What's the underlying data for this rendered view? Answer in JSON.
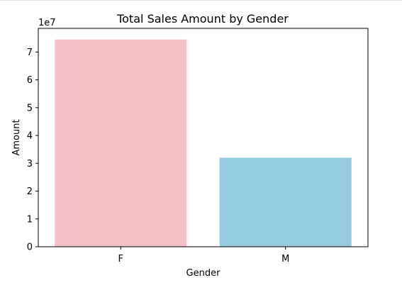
{
  "chart_data": {
    "type": "bar",
    "title": "Total Sales Amount by Gender",
    "xlabel": "Gender",
    "ylabel": "Amount",
    "categories": [
      "F",
      "M"
    ],
    "values": [
      74500000,
      32000000
    ],
    "colors": [
      "#f5bec8",
      "#96cadf"
    ],
    "ylim": [
      0,
      78500000
    ],
    "yticks": [
      0,
      10000000,
      20000000,
      30000000,
      40000000,
      50000000,
      60000000,
      70000000
    ],
    "ytick_labels": [
      "0",
      "1",
      "2",
      "3",
      "4",
      "5",
      "6",
      "7"
    ],
    "offset_label": "1e7",
    "grid": false,
    "legend": "none"
  }
}
